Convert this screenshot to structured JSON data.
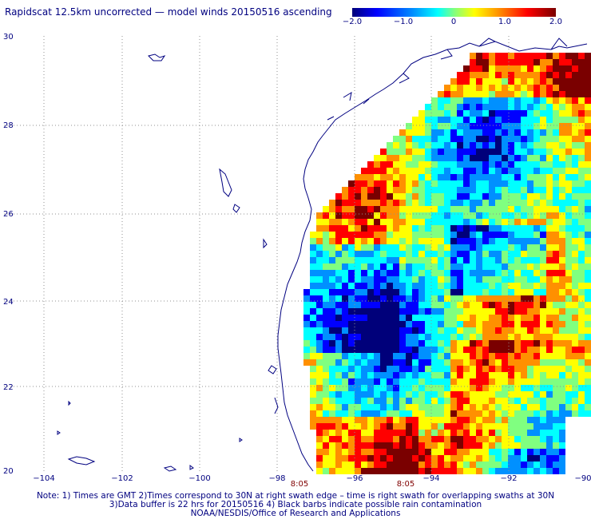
{
  "title": "Rapidscat 12.5km uncorrected — model winds 20150516 ascending",
  "colorbar": {
    "ticks": [
      "−2.0",
      "−1.0",
      "0",
      "1.0",
      "2.0"
    ],
    "colors": [
      "#00007a",
      "#0000ff",
      "#0090ff",
      "#00ffff",
      "#80ff80",
      "#ffff00",
      "#ff9000",
      "#ff0000",
      "#7a0000"
    ]
  },
  "map": {
    "lon_labels": [
      "−104",
      "−102",
      "−100",
      "−98",
      "−96",
      "−94",
      "−92",
      "−90"
    ],
    "lat_labels": [
      "30",
      "28",
      "26",
      "24",
      "22",
      "20"
    ],
    "swath_times": [
      "8:05",
      "8:05"
    ],
    "land_color": "#ffffff",
    "coast_color": "#000080",
    "grid_color": "#909090",
    "time_color": "#800000"
  },
  "notes": [
    "Note: 1) Times are GMT 2)Times correspond to 30N at right swath edge – time is right swath for overlapping swaths at 30N",
    "3)Data buffer is 22 hrs for 20150516 4) Black barbs indicate possible rain contamination",
    "NOAA/NESDIS/Office of Research and Applications"
  ]
}
